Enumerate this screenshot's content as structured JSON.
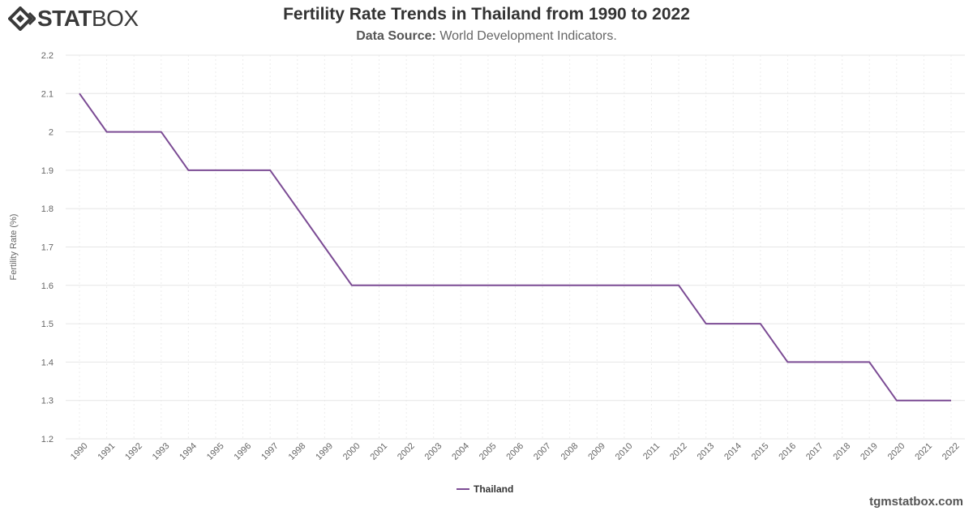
{
  "logo": {
    "stat": "STAT",
    "box": "BOX"
  },
  "header": {
    "title": "Fertility Rate Trends in Thailand from 1990 to 2022",
    "source_label": "Data Source:",
    "source_value": "World Development Indicators."
  },
  "footer": {
    "site": "tgmstatbox.com"
  },
  "colors": {
    "series": "#7b4b94",
    "grid": "#e6e6e6",
    "text": "#666666"
  },
  "chart_data": {
    "type": "line",
    "title": "Fertility Rate Trends in Thailand from 1990 to 2022",
    "xlabel": "",
    "ylabel": "Fertility Rate (%)",
    "ylim": [
      1.2,
      2.2
    ],
    "yticks": [
      1.2,
      1.3,
      1.4,
      1.5,
      1.6,
      1.7,
      1.8,
      1.9,
      2,
      2.1,
      2.2
    ],
    "categories": [
      "1990",
      "1991",
      "1992",
      "1993",
      "1994",
      "1995",
      "1996",
      "1997",
      "1998",
      "1999",
      "2000",
      "2001",
      "2002",
      "2003",
      "2004",
      "2005",
      "2006",
      "2007",
      "2008",
      "2009",
      "2010",
      "2011",
      "2012",
      "2013",
      "2014",
      "2015",
      "2016",
      "2017",
      "2018",
      "2019",
      "2020",
      "2021",
      "2022"
    ],
    "series": [
      {
        "name": "Thailand",
        "values": [
          2.1,
          2.0,
          2.0,
          2.0,
          1.9,
          1.9,
          1.9,
          1.9,
          1.8,
          1.7,
          1.6,
          1.6,
          1.6,
          1.6,
          1.6,
          1.6,
          1.6,
          1.6,
          1.6,
          1.6,
          1.6,
          1.6,
          1.6,
          1.5,
          1.5,
          1.5,
          1.4,
          1.4,
          1.4,
          1.4,
          1.3,
          1.3,
          1.3
        ]
      }
    ],
    "grid": true,
    "legend": "bottom-center"
  }
}
